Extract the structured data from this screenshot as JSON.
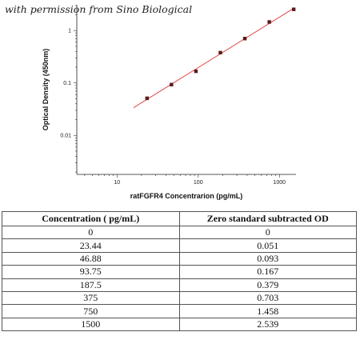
{
  "watermark": "with permission from Sino Biological",
  "chart_data": {
    "type": "scatter",
    "xlabel": "ratFGFR4 Concentrarion (pg/mL)",
    "ylabel": "Optical Density (450nm)",
    "x_scale": "log",
    "y_scale": "log",
    "xlim": [
      3.2,
      1600
    ],
    "ylim": [
      0.0018,
      3.1
    ],
    "x_ticks": [
      10,
      100,
      1000
    ],
    "x_tick_labels": [
      "10",
      "100",
      "1000"
    ],
    "y_ticks": [
      0.01,
      0.1,
      1
    ],
    "y_tick_labels": [
      "0.01",
      "0.1",
      "1"
    ],
    "grid": false,
    "series": [
      {
        "x": [
          23.44,
          46.88,
          93.75,
          187.5,
          375,
          750,
          1500
        ],
        "y": [
          0.051,
          0.093,
          0.167,
          0.379,
          0.703,
          1.458,
          2.539
        ],
        "marker_color": "#5a1a1a",
        "fit_line_color": "#e03030",
        "fit_x_range": [
          16,
          1500
        ]
      }
    ]
  },
  "table": {
    "headers": [
      "Concentration ( pg/mL)",
      "Zero standard subtracted OD"
    ],
    "rows": [
      [
        "0",
        "0"
      ],
      [
        "23.44",
        "0.051"
      ],
      [
        "46.88",
        "0.093"
      ],
      [
        "93.75",
        "0.167"
      ],
      [
        "187.5",
        "0.379"
      ],
      [
        "375",
        "0.703"
      ],
      [
        "750",
        "1.458"
      ],
      [
        "1500",
        "2.539"
      ]
    ]
  }
}
